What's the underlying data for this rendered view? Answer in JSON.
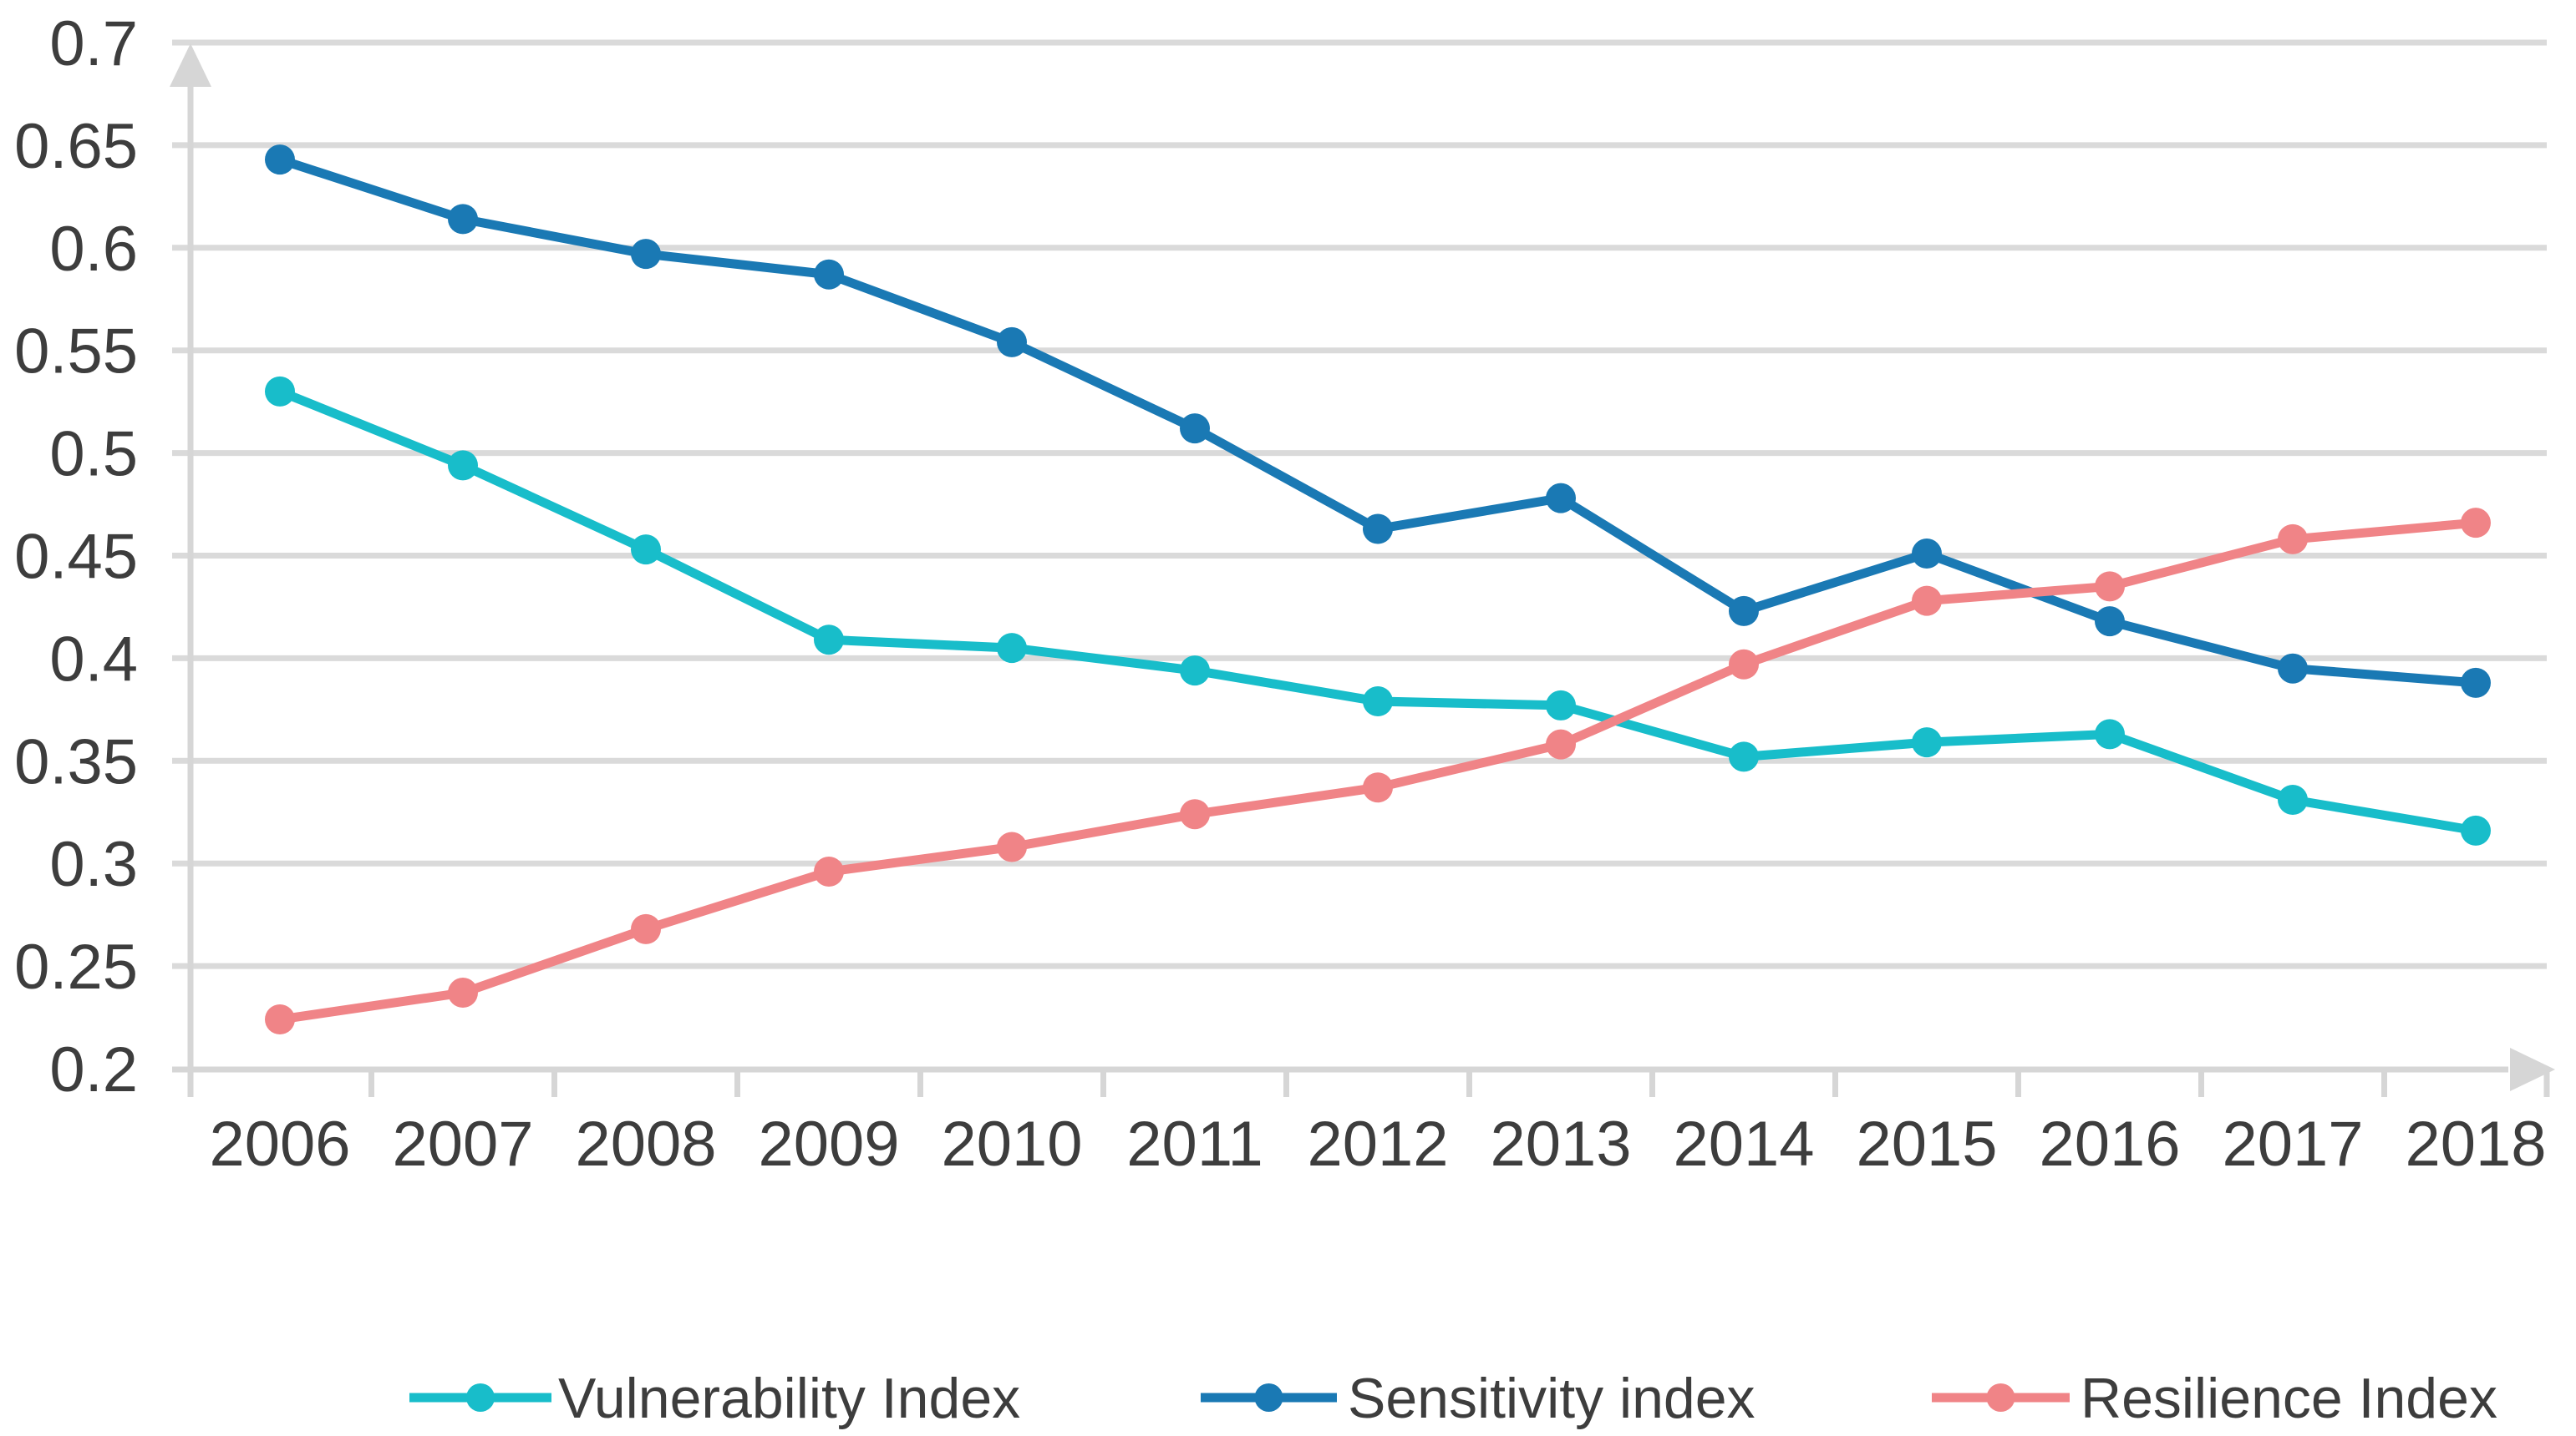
{
  "chart_data": {
    "type": "line",
    "x_categories": [
      "2006",
      "2007",
      "2008",
      "2009",
      "2010",
      "2011",
      "2012",
      "2013",
      "2014",
      "2015",
      "2016",
      "2017",
      "2018"
    ],
    "y_axis": {
      "min": 0.2,
      "max": 0.7,
      "tick_step": 0.05,
      "tick_labels": [
        "0.7",
        "0.65",
        "0.6",
        "0.55",
        "0.5",
        "0.45",
        "0.4",
        "0.35",
        "0.3",
        "0.25",
        "0.2"
      ]
    },
    "grid": true,
    "legend_position": "bottom",
    "series": [
      {
        "name": "Vulnerability Index",
        "color": "#18bdca",
        "values": [
          0.53,
          0.494,
          0.453,
          0.409,
          0.405,
          0.394,
          0.379,
          0.377,
          0.352,
          0.359,
          0.363,
          0.331,
          0.316
        ]
      },
      {
        "name": "Sensitivity index",
        "color": "#1a79b4",
        "values": [
          0.643,
          0.614,
          0.597,
          0.587,
          0.554,
          0.512,
          0.463,
          0.478,
          0.423,
          0.451,
          0.418,
          0.395,
          0.388
        ]
      },
      {
        "name": "Resilience Index",
        "color": "#f08487",
        "values": [
          0.224,
          0.237,
          0.268,
          0.296,
          0.308,
          0.324,
          0.337,
          0.358,
          0.397,
          0.428,
          0.435,
          0.458,
          0.466
        ]
      }
    ]
  },
  "colors": {
    "background": "#ffffff",
    "gridline": "#dadada",
    "axis": "#d6d6d6",
    "label_text": "#3d3d3d"
  }
}
